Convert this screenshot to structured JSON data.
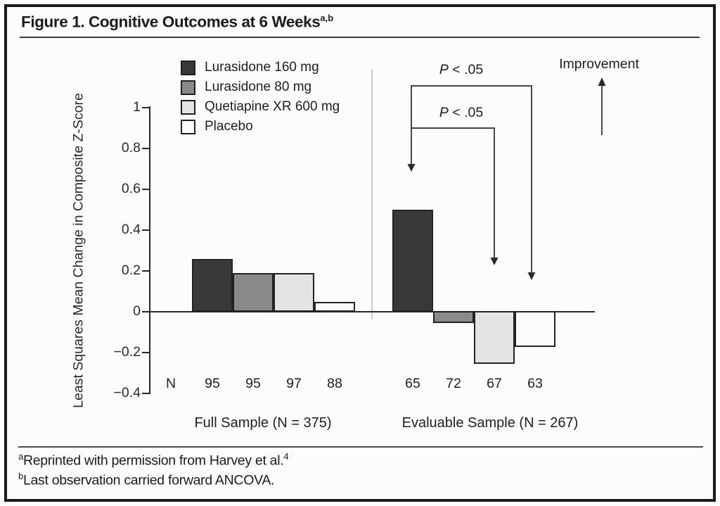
{
  "figure": {
    "title": "Figure 1. Cognitive Outcomes at 6 Weeks",
    "title_superscript": "a,b"
  },
  "chart_data": {
    "type": "bar",
    "title": "Figure 1. Cognitive Outcomes at 6 Weeks",
    "ylabel": "Least Squares Mean Change in Composite Z-Score",
    "ylim": [
      -0.4,
      1
    ],
    "yticks": [
      1,
      0.8,
      0.6,
      0.4,
      0.2,
      0,
      -0.2,
      -0.4
    ],
    "ytick_labels": [
      "1",
      "0.8",
      "0.6",
      "0.4",
      "0.2",
      "0",
      "−0.2",
      "−0.4"
    ],
    "grid": false,
    "legend_position": "top-left-inside",
    "categories": [
      "Full Sample (N = 375)",
      "Evaluable Sample (N = 267)"
    ],
    "series": [
      {
        "name": "Lurasidone 160 mg",
        "color": "#39393b",
        "values": [
          0.26,
          0.5
        ]
      },
      {
        "name": "Lurasidone 80 mg",
        "color": "#8a8a8a",
        "values": [
          0.19,
          -0.05
        ]
      },
      {
        "name": "Quetiapine XR 600 mg",
        "color": "#e4e4e4",
        "values": [
          0.19,
          -0.25
        ]
      },
      {
        "name": "Placebo",
        "color": "#fcfcfa",
        "values": [
          0.05,
          -0.17
        ]
      }
    ],
    "n_row": {
      "label": "N",
      "groups": [
        [
          "95",
          "95",
          "97",
          "88"
        ],
        [
          "65",
          "72",
          "67",
          "63"
        ]
      ]
    },
    "significance": [
      {
        "italic": "P",
        "rest": " < .05"
      },
      {
        "italic": "P",
        "rest": " < .05"
      }
    ],
    "improvement_label": "Improvement"
  },
  "footnotes": [
    {
      "marker": "a",
      "text": "Reprinted with permission from Harvey et al.",
      "trailing_superscript": "4"
    },
    {
      "marker": "b",
      "text": "Last observation carried forward ANCOVA.",
      "trailing_superscript": ""
    }
  ]
}
